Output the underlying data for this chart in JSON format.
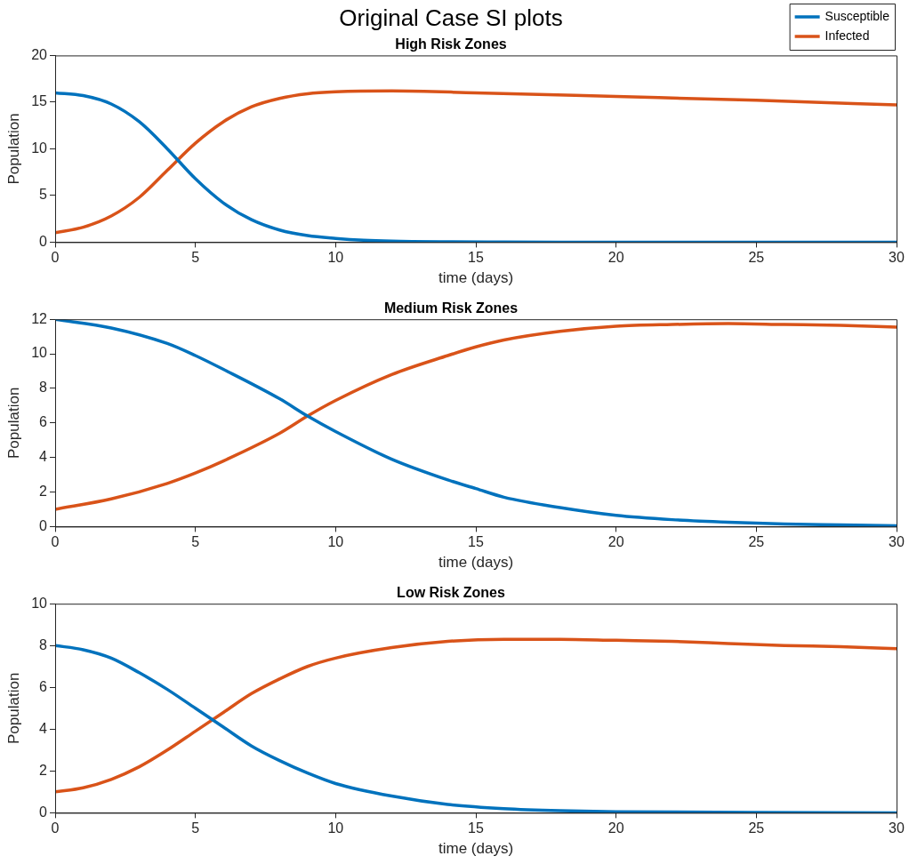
{
  "chart_data": [
    {
      "type": "line",
      "title": "Original Case SI plots",
      "subtitle": "High Risk Zones",
      "xlabel": "time (days)",
      "ylabel": "Population",
      "xlim": [
        0,
        30
      ],
      "xticks": [
        0,
        5,
        10,
        15,
        20,
        25,
        30
      ],
      "ylim": [
        0,
        20
      ],
      "yticks": [
        0,
        5,
        10,
        15,
        20
      ],
      "grid": false,
      "legend": "top right",
      "marker": "none",
      "line_style": "solid",
      "series": [
        {
          "name": "Susceptible",
          "color": "#0072bd",
          "x": [
            0,
            1,
            2,
            3,
            4,
            5,
            6,
            7,
            8,
            9,
            10,
            11,
            12,
            14,
            16,
            20,
            25,
            30
          ],
          "values": [
            16,
            15.7,
            14.8,
            12.9,
            10,
            6.8,
            4.2,
            2.4,
            1.3,
            0.7,
            0.4,
            0.2,
            0.1,
            0.03,
            0.01,
            0,
            0,
            0
          ]
        },
        {
          "name": "Infected",
          "color": "#d95319",
          "x": [
            0,
            1,
            2,
            3,
            4,
            5,
            6,
            7,
            8,
            9,
            10,
            12,
            15,
            20,
            25,
            30
          ],
          "values": [
            1,
            1.6,
            2.8,
            4.8,
            7.7,
            10.6,
            12.9,
            14.5,
            15.4,
            15.9,
            16.1,
            16.2,
            16,
            15.6,
            15.2,
            14.7
          ]
        }
      ]
    },
    {
      "type": "line",
      "title": "Medium Risk Zones",
      "xlabel": "time (days)",
      "ylabel": "Population",
      "xlim": [
        0,
        30
      ],
      "xticks": [
        0,
        5,
        10,
        15,
        20,
        25,
        30
      ],
      "ylim": [
        0,
        12
      ],
      "yticks": [
        0,
        2,
        4,
        6,
        8,
        10,
        12
      ],
      "grid": false,
      "marker": "none",
      "line_style": "solid",
      "series": [
        {
          "color": "#0072bd",
          "x": [
            0,
            2,
            4,
            5,
            6,
            8,
            9,
            10,
            12,
            14,
            15,
            16,
            18,
            20,
            22,
            24,
            26,
            28,
            30
          ],
          "values": [
            12,
            11.5,
            10.6,
            9.9,
            9.1,
            7.4,
            6.4,
            5.5,
            3.9,
            2.7,
            2.2,
            1.7,
            1.1,
            0.65,
            0.4,
            0.25,
            0.15,
            0.1,
            0.05
          ]
        },
        {
          "color": "#d95319",
          "x": [
            0,
            2,
            4,
            5,
            6,
            8,
            9,
            10,
            12,
            14,
            15,
            16,
            18,
            20,
            22,
            24,
            26,
            28,
            30
          ],
          "values": [
            1,
            1.6,
            2.5,
            3.1,
            3.8,
            5.4,
            6.4,
            7.3,
            8.8,
            9.9,
            10.4,
            10.8,
            11.3,
            11.6,
            11.7,
            11.75,
            11.7,
            11.65,
            11.55
          ]
        }
      ]
    },
    {
      "type": "line",
      "title": "Low Risk Zones",
      "xlabel": "time (days)",
      "ylabel": "Population",
      "xlim": [
        0,
        30
      ],
      "xticks": [
        0,
        5,
        10,
        15,
        20,
        25,
        30
      ],
      "ylim": [
        0,
        10
      ],
      "yticks": [
        0,
        2,
        4,
        6,
        8,
        10
      ],
      "grid": false,
      "marker": "none",
      "line_style": "solid",
      "series": [
        {
          "color": "#0072bd",
          "x": [
            0,
            1,
            2,
            3,
            4,
            5,
            6,
            7,
            8,
            9,
            10,
            12,
            14,
            16,
            18,
            20,
            25,
            30
          ],
          "values": [
            8,
            7.8,
            7.4,
            6.7,
            5.9,
            5,
            4.1,
            3.2,
            2.5,
            1.9,
            1.4,
            0.8,
            0.4,
            0.2,
            0.1,
            0.05,
            0.02,
            0
          ]
        },
        {
          "color": "#d95319",
          "x": [
            0,
            1,
            2,
            3,
            4,
            5,
            6,
            7,
            8,
            9,
            10,
            12,
            14,
            16,
            18,
            20,
            22,
            24,
            26,
            28,
            30
          ],
          "values": [
            1,
            1.2,
            1.6,
            2.2,
            3,
            3.9,
            4.8,
            5.7,
            6.4,
            7,
            7.4,
            7.9,
            8.2,
            8.3,
            8.3,
            8.25,
            8.2,
            8.1,
            8,
            7.95,
            7.85
          ]
        }
      ]
    }
  ]
}
